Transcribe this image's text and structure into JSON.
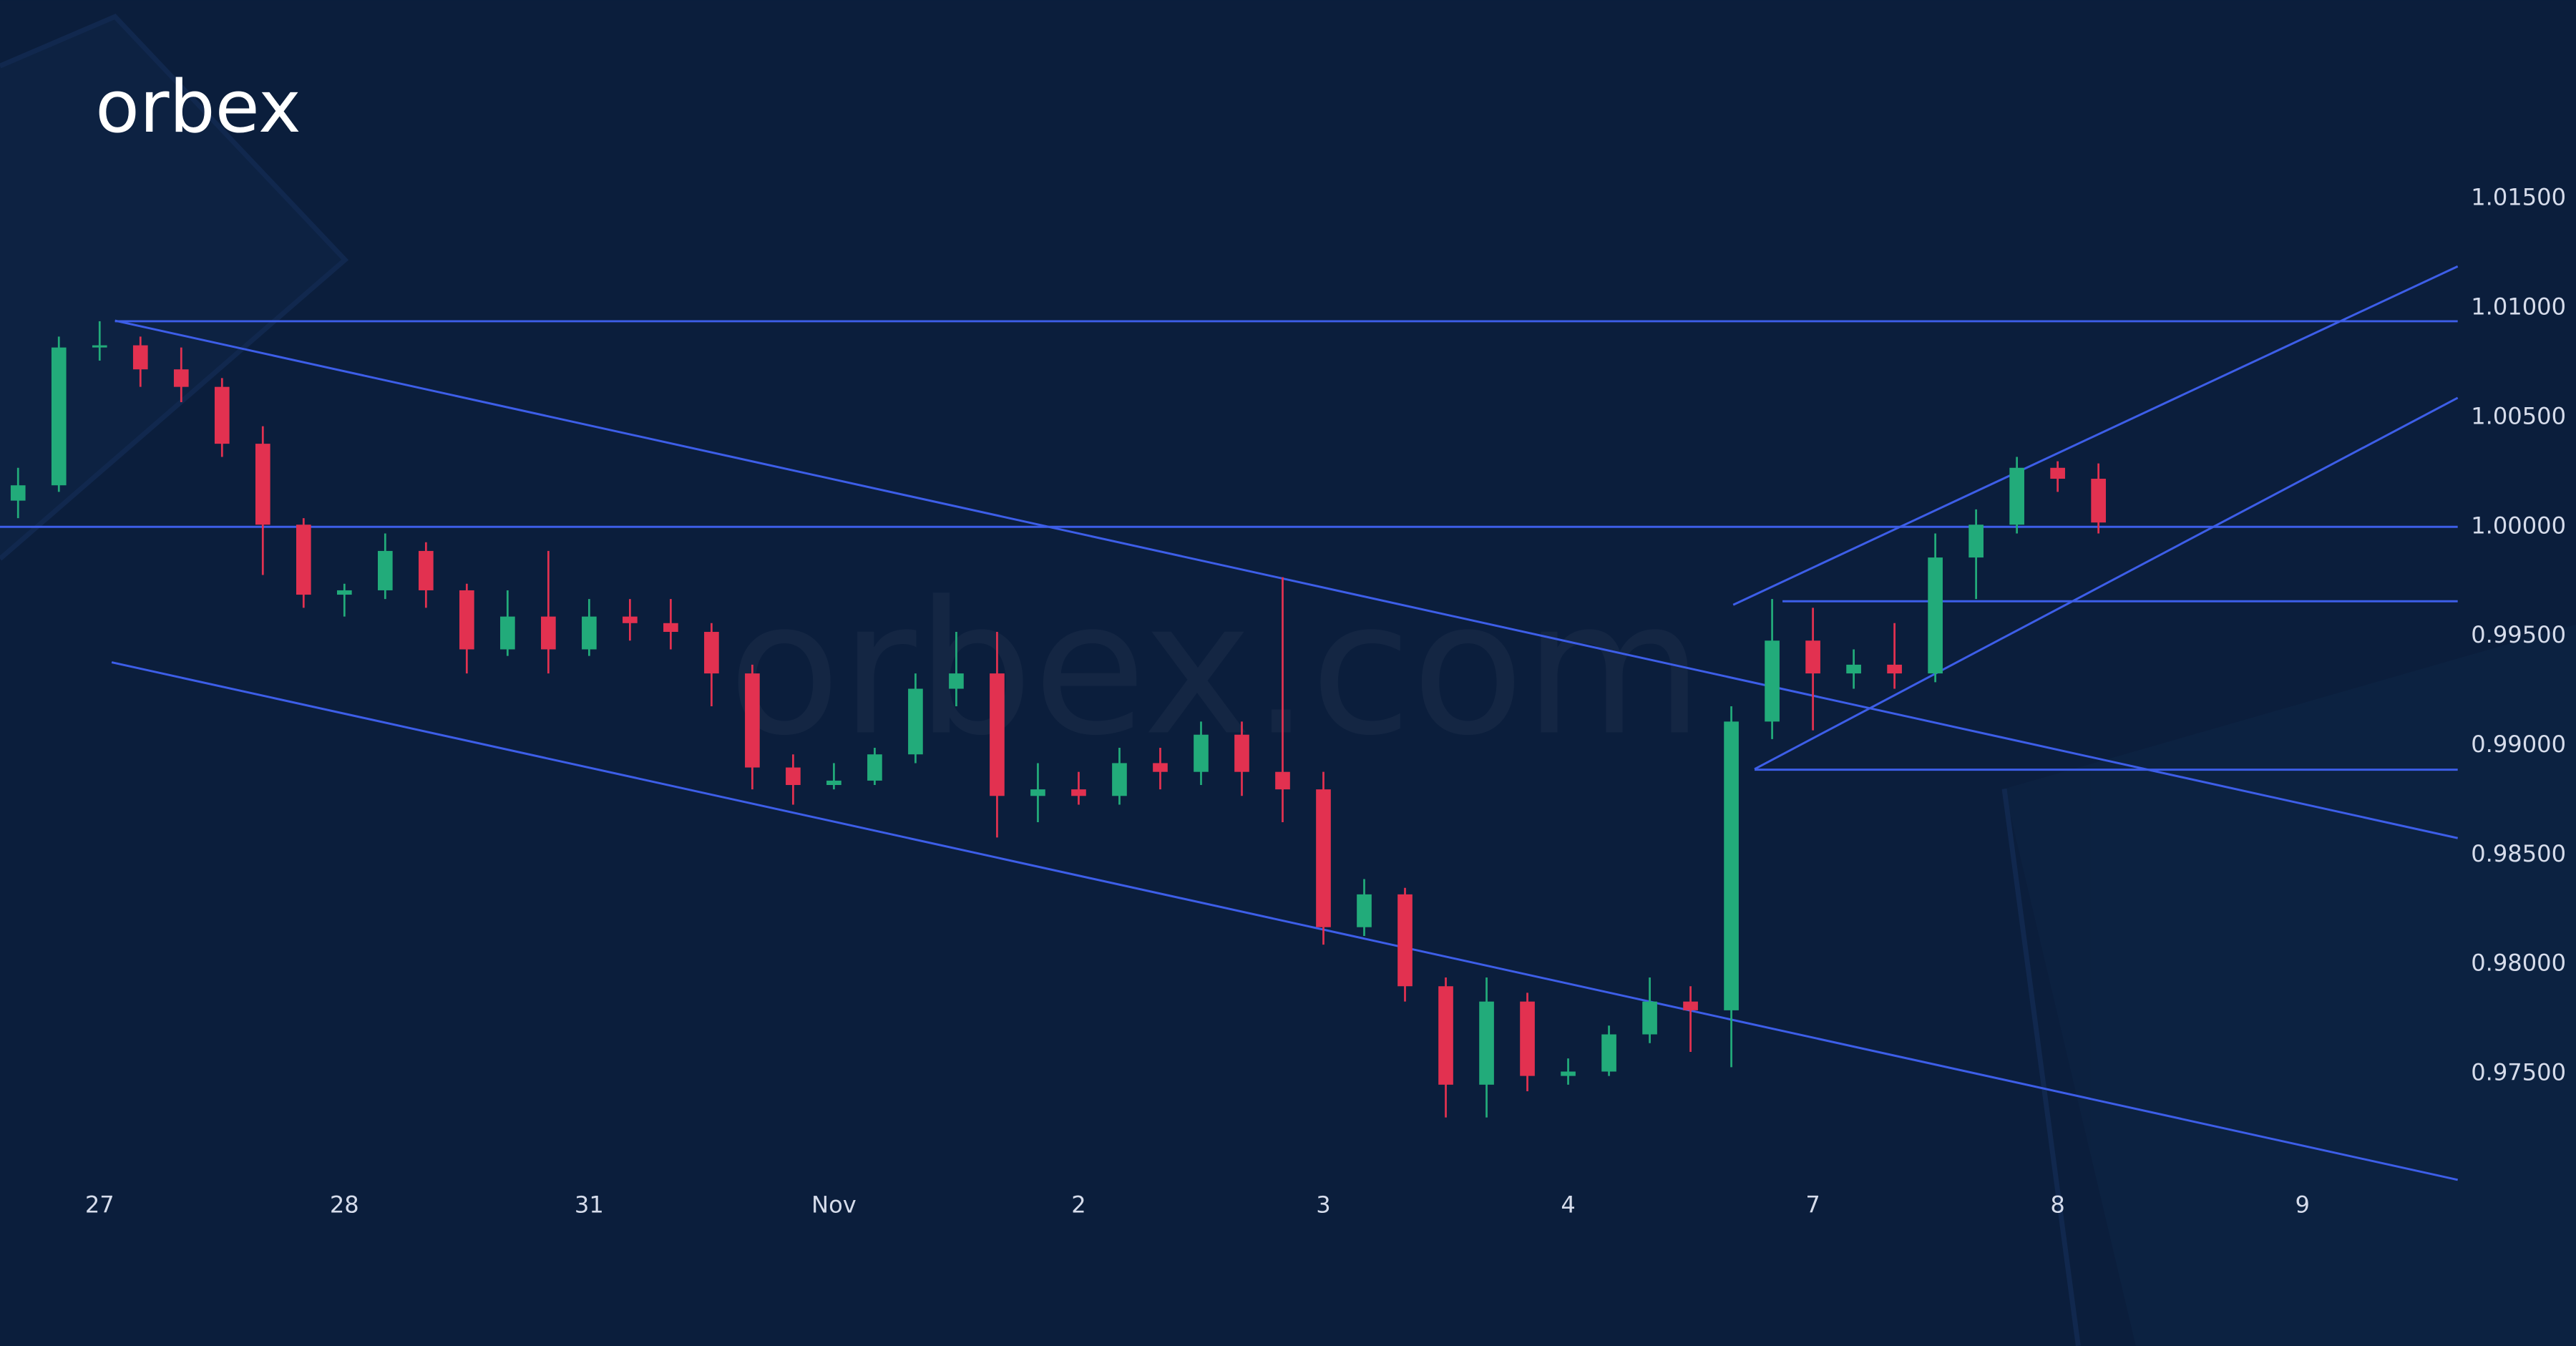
{
  "logo": "orbex",
  "watermark": "orbex.com",
  "chart_data": {
    "type": "candlestick",
    "categories": [
      null,
      null,
      "27",
      null,
      null,
      null,
      null,
      null,
      "28",
      null,
      null,
      null,
      null,
      null,
      "31",
      null,
      null,
      null,
      null,
      null,
      "Nov",
      null,
      null,
      null,
      null,
      null,
      "2",
      null,
      null,
      null,
      null,
      null,
      "3",
      null,
      null,
      null,
      null,
      null,
      "4",
      null,
      null,
      null,
      null,
      null,
      "7",
      null,
      null,
      null,
      null,
      null,
      "8",
      null,
      null,
      null,
      null,
      null,
      "9",
      null
    ],
    "open": [
      1.0012,
      1.0019,
      1.0082,
      1.0083,
      1.0072,
      1.0064,
      1.0038,
      1.0001,
      0.9969,
      0.9971,
      0.9989,
      0.9971,
      0.9944,
      0.9959,
      0.9944,
      0.9959,
      0.9956,
      0.9952,
      0.9933,
      0.989,
      0.9882,
      0.9884,
      0.9896,
      0.9926,
      0.9933,
      0.9877,
      0.988,
      0.9877,
      0.9892,
      0.9888,
      0.9905,
      0.9888,
      0.988,
      0.9817,
      0.9832,
      0.979,
      0.9745,
      0.9783,
      0.9749,
      0.9751,
      0.9768,
      0.9783,
      0.9779,
      0.9911,
      0.9948,
      0.9933,
      0.9937,
      0.9933,
      0.9986,
      1.0001,
      1.0027,
      1.0022,
      null,
      null,
      null,
      null,
      null,
      null
    ],
    "high": [
      1.0027,
      1.0087,
      1.0094,
      1.0087,
      1.0082,
      1.0068,
      1.0046,
      1.0004,
      0.9974,
      0.9997,
      0.9993,
      0.9974,
      0.9971,
      0.9989,
      0.9967,
      0.9967,
      0.9967,
      0.9956,
      0.9937,
      0.9896,
      0.9892,
      0.9899,
      0.9933,
      0.9952,
      0.9952,
      0.9892,
      0.9888,
      0.9899,
      0.9899,
      0.9911,
      0.9911,
      0.9977,
      0.9888,
      0.9839,
      0.9835,
      0.9794,
      0.9794,
      0.9787,
      0.9757,
      0.9772,
      0.9794,
      0.979,
      0.9918,
      0.9967,
      0.9963,
      0.9944,
      0.9956,
      0.9997,
      1.0008,
      1.0032,
      1.003,
      1.0029,
      null,
      null,
      null,
      null,
      null,
      null
    ],
    "low": [
      1.0004,
      1.0016,
      1.0076,
      1.0064,
      1.0057,
      1.0032,
      0.9978,
      0.9963,
      0.9959,
      0.9967,
      0.9963,
      0.9933,
      0.9941,
      0.9933,
      0.9941,
      0.9948,
      0.9944,
      0.9918,
      0.988,
      0.9873,
      0.988,
      0.9882,
      0.9892,
      0.9918,
      0.9858,
      0.9865,
      0.9873,
      0.9873,
      0.988,
      0.9882,
      0.9877,
      0.9865,
      0.9809,
      0.9813,
      0.9783,
      0.973,
      0.973,
      0.9742,
      0.9745,
      0.9749,
      0.9764,
      0.976,
      0.9753,
      0.9903,
      0.9907,
      0.9926,
      0.9926,
      0.9929,
      0.9967,
      0.9997,
      1.0016,
      0.9997,
      null,
      null,
      null,
      null,
      null,
      null
    ],
    "close": [
      1.0019,
      1.0082,
      1.0083,
      1.0072,
      1.0064,
      1.0038,
      1.0001,
      0.9969,
      0.9971,
      0.9989,
      0.9971,
      0.9944,
      0.9959,
      0.9944,
      0.9959,
      0.9956,
      0.9952,
      0.9933,
      0.989,
      0.9882,
      0.9884,
      0.9896,
      0.9926,
      0.9933,
      0.9877,
      0.988,
      0.9877,
      0.9892,
      0.9888,
      0.9905,
      0.9888,
      0.988,
      0.9817,
      0.9832,
      0.979,
      0.9745,
      0.9783,
      0.9749,
      0.9751,
      0.9768,
      0.9783,
      0.9779,
      0.9911,
      0.9948,
      0.9933,
      0.9937,
      0.9933,
      0.9986,
      1.0001,
      1.0027,
      1.0022,
      1.0002,
      null,
      null,
      null,
      null,
      null,
      null
    ],
    "up_color": "#22ab7a",
    "down_color": "#e23150",
    "line_color": "#3d5ee8",
    "levels": [
      1.0094,
      1.0,
      0.9966,
      0.9889
    ],
    "ylim": [
      0.97,
      1.024
    ],
    "yticks": [
      {
        "value": 0.975,
        "label": "0.97500"
      },
      {
        "value": 0.98,
        "label": "0.98000"
      },
      {
        "value": 0.985,
        "label": "0.98500"
      },
      {
        "value": 0.99,
        "label": "0.99000"
      },
      {
        "value": 0.995,
        "label": "0.99500"
      },
      {
        "value": 1.0,
        "label": "1.00000"
      },
      {
        "value": 1.005,
        "label": "1.00500"
      },
      {
        "value": 1.01,
        "label": "1.01000"
      },
      {
        "value": 1.015,
        "label": "1.01500"
      }
    ],
    "grid": false
  }
}
